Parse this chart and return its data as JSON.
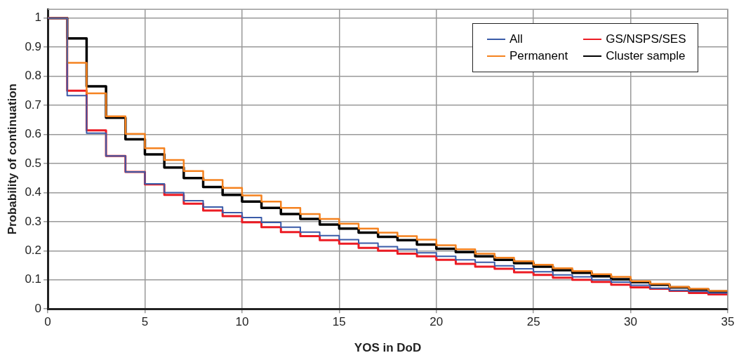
{
  "chart_data": {
    "type": "step",
    "xlabel": "YOS in DoD",
    "ylabel": "Probability of continuation",
    "x": [
      0,
      1,
      2,
      3,
      4,
      5,
      6,
      7,
      8,
      9,
      10,
      11,
      12,
      13,
      14,
      15,
      16,
      17,
      18,
      19,
      20,
      21,
      22,
      23,
      24,
      25,
      26,
      27,
      28,
      29,
      30,
      31,
      32,
      33,
      34,
      35
    ],
    "xlim": [
      0,
      35
    ],
    "xticks": [
      0,
      5,
      10,
      15,
      20,
      25,
      30,
      35
    ],
    "ylim": [
      0,
      1.03
    ],
    "yticks": [
      0,
      0.1,
      0.2,
      0.3,
      0.4,
      0.5,
      0.6,
      0.7,
      0.8,
      0.9,
      1
    ],
    "grid": true,
    "legend": "top right",
    "line_style": "solid",
    "marker": "none",
    "series": [
      {
        "name": "All",
        "color": "#3a5ba8",
        "values": [
          1,
          0.733,
          0.604,
          0.526,
          0.471,
          0.43,
          0.4,
          0.372,
          0.35,
          0.331,
          0.314,
          0.297,
          0.281,
          0.264,
          0.252,
          0.238,
          0.226,
          0.214,
          0.205,
          0.193,
          0.181,
          0.169,
          0.16,
          0.148,
          0.138,
          0.128,
          0.117,
          0.11,
          0.1,
          0.092,
          0.081,
          0.071,
          0.064,
          0.06,
          0.055,
          0.055
        ]
      },
      {
        "name": "Permanent",
        "color": "#f5821f",
        "values": [
          1,
          0.846,
          0.741,
          0.662,
          0.602,
          0.552,
          0.512,
          0.474,
          0.443,
          0.416,
          0.39,
          0.369,
          0.347,
          0.326,
          0.309,
          0.293,
          0.276,
          0.262,
          0.25,
          0.238,
          0.219,
          0.205,
          0.19,
          0.176,
          0.164,
          0.152,
          0.14,
          0.13,
          0.119,
          0.11,
          0.095,
          0.086,
          0.076,
          0.069,
          0.062,
          0.062
        ]
      },
      {
        "name": "GS/NSPS/SES",
        "color": "#ec1c24",
        "values": [
          1,
          0.75,
          0.614,
          0.526,
          0.471,
          0.428,
          0.392,
          0.362,
          0.338,
          0.319,
          0.298,
          0.281,
          0.264,
          0.25,
          0.236,
          0.224,
          0.21,
          0.2,
          0.19,
          0.181,
          0.169,
          0.155,
          0.145,
          0.138,
          0.126,
          0.117,
          0.107,
          0.1,
          0.093,
          0.083,
          0.074,
          0.069,
          0.062,
          0.055,
          0.05,
          0.05
        ]
      },
      {
        "name": "Cluster sample",
        "color": "#000000",
        "values": [
          1,
          0.93,
          0.765,
          0.657,
          0.583,
          0.531,
          0.486,
          0.45,
          0.419,
          0.392,
          0.369,
          0.347,
          0.326,
          0.309,
          0.29,
          0.276,
          0.262,
          0.248,
          0.236,
          0.221,
          0.207,
          0.195,
          0.181,
          0.169,
          0.157,
          0.145,
          0.133,
          0.124,
          0.112,
          0.102,
          0.092,
          0.083,
          0.074,
          0.067,
          0.06,
          0.06
        ]
      }
    ]
  }
}
